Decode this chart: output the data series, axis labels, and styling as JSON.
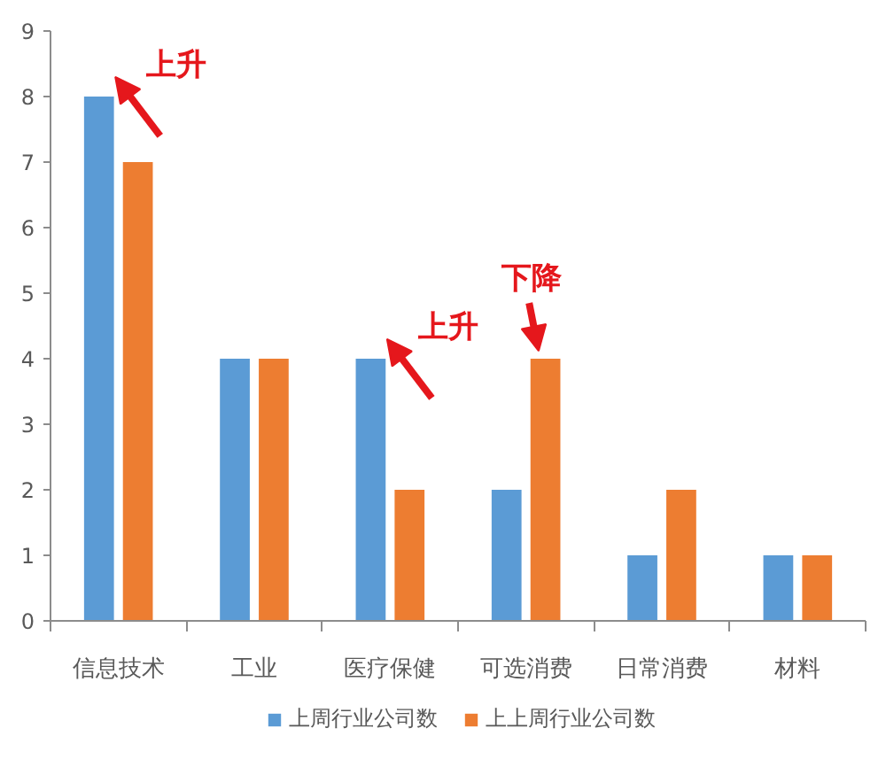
{
  "chart_data": {
    "type": "bar",
    "categories": [
      "信息技术",
      "工业",
      "医疗保健",
      "可选消费",
      "日常消费",
      "材料"
    ],
    "series": [
      {
        "name": "上周行业公司数",
        "color": "#5b9bd5",
        "values": [
          8,
          4,
          4,
          2,
          1,
          1
        ]
      },
      {
        "name": "上上周行业公司数",
        "color": "#ed7d31",
        "values": [
          7,
          4,
          2,
          4,
          2,
          1
        ]
      }
    ],
    "ylim": [
      0,
      9
    ],
    "yticks": [
      0,
      1,
      2,
      3,
      4,
      5,
      6,
      7,
      8,
      9
    ],
    "grid": false,
    "legend": "bottom",
    "annotations": [
      {
        "text": "上升",
        "x": "信息技术",
        "y": 8
      },
      {
        "text": "上升",
        "x": "医疗保健",
        "y": 4
      },
      {
        "text": "下降",
        "x": "可选消费",
        "y": 4
      }
    ]
  }
}
